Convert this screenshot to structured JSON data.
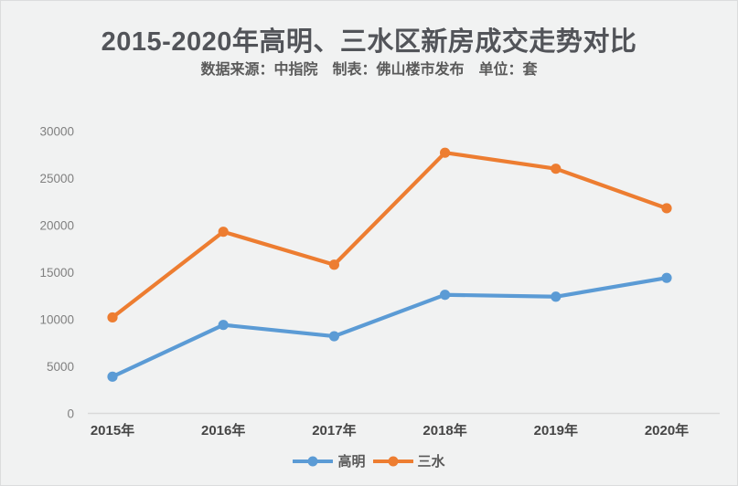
{
  "header": {
    "title": "2015-2020年高明、三水区新房成交走势对比",
    "subtitle": "数据来源：中指院　制表：佛山楼市发布　单位：套"
  },
  "chart_data": {
    "type": "line",
    "title": "2015-2020年高明、三水区新房成交走势对比",
    "subtitle": "数据来源：中指院　制表：佛山楼市发布　单位：套",
    "unit": "套",
    "categories": [
      "2015年",
      "2016年",
      "2017年",
      "2018年",
      "2019年",
      "2020年"
    ],
    "series": [
      {
        "name": "高明",
        "color": "#5B9BD5",
        "values": [
          3900,
          9400,
          8200,
          12600,
          12400,
          14400
        ]
      },
      {
        "name": "三水",
        "color": "#ED7D31",
        "values": [
          10200,
          19300,
          15800,
          27700,
          26000,
          21800
        ]
      }
    ],
    "xlabel": "",
    "ylabel": "",
    "ylim": [
      0,
      30000
    ],
    "ytick_step": 5000,
    "yticks": [
      0,
      5000,
      10000,
      15000,
      20000,
      25000,
      30000
    ],
    "grid": false,
    "legend_position": "bottom"
  },
  "colors": {
    "background": "#F1F2F2",
    "border": "#DBDCDD",
    "title_text": "#525459",
    "subtitle_text": "#5A5A5A",
    "axis_line": "#D9D9D9",
    "ytick_text": "#808080",
    "xtick_text": "#454545",
    "legend_text": "#595959"
  }
}
